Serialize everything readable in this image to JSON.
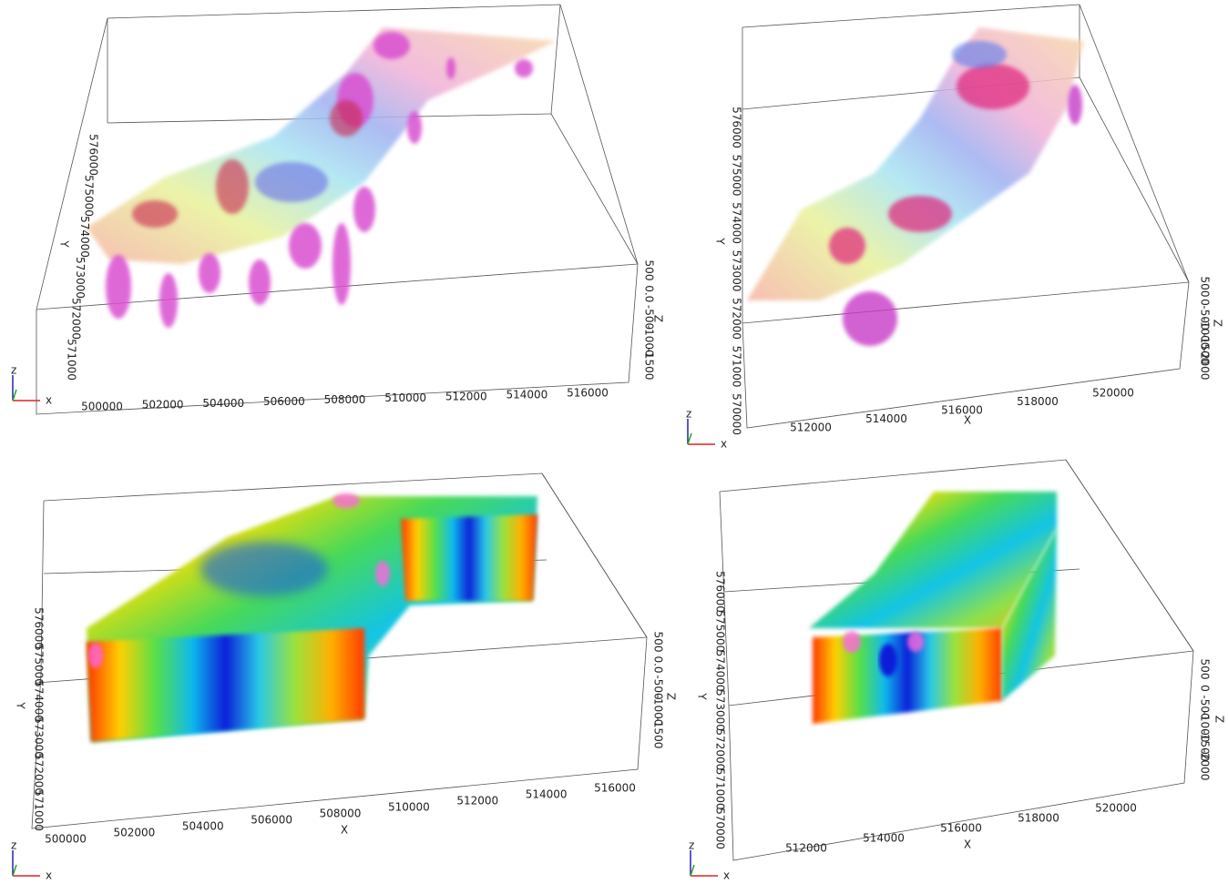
{
  "panels": [
    {
      "x_ticks": [
        "500000",
        "502000",
        "504000",
        "506000",
        "508000",
        "510000",
        "512000",
        "514000",
        "516000"
      ],
      "y_ticks": [
        "571000",
        "572000",
        "573000",
        "574000",
        "575000",
        "576000"
      ],
      "z_ticks": [
        "-1500",
        "-1000",
        "-500",
        "0.0",
        "500"
      ],
      "y_label": "Y",
      "z_label": "Z",
      "triad": {
        "x": "x",
        "z": "z"
      }
    },
    {
      "x_ticks": [
        "512000",
        "514000",
        "516000",
        "518000",
        "520000"
      ],
      "y_ticks": [
        "570000",
        "571000",
        "572000",
        "573000",
        "574000",
        "575000",
        "576000"
      ],
      "z_ticks": [
        "-2000",
        "-1500",
        "-1000",
        "-500",
        "0",
        "500"
      ],
      "x_label": "X",
      "y_label": "Y",
      "z_label": "Z",
      "triad": {
        "x": "x",
        "z": "z"
      }
    },
    {
      "x_ticks": [
        "500000",
        "502000",
        "504000",
        "506000",
        "508000",
        "510000",
        "512000",
        "514000",
        "516000"
      ],
      "y_ticks": [
        "571000",
        "572000",
        "573000",
        "574000",
        "575000",
        "576000"
      ],
      "z_ticks": [
        "-1500",
        "-1000",
        "-500",
        "0.0",
        "500"
      ],
      "x_label": "X",
      "y_label": "Y",
      "z_label": "Z",
      "triad": {
        "x": "x",
        "z": "z"
      }
    },
    {
      "x_ticks": [
        "512000",
        "514000",
        "516000",
        "518000",
        "520000"
      ],
      "y_ticks": [
        "570000",
        "571000",
        "572000",
        "573000",
        "574000",
        "575000",
        "576000"
      ],
      "z_ticks": [
        "-2000",
        "-1500",
        "-1000",
        "-500",
        "0",
        "500"
      ],
      "x_label": "X",
      "y_label": "Y",
      "z_label": "Z",
      "triad": {
        "x": "x",
        "z": "z"
      }
    }
  ]
}
